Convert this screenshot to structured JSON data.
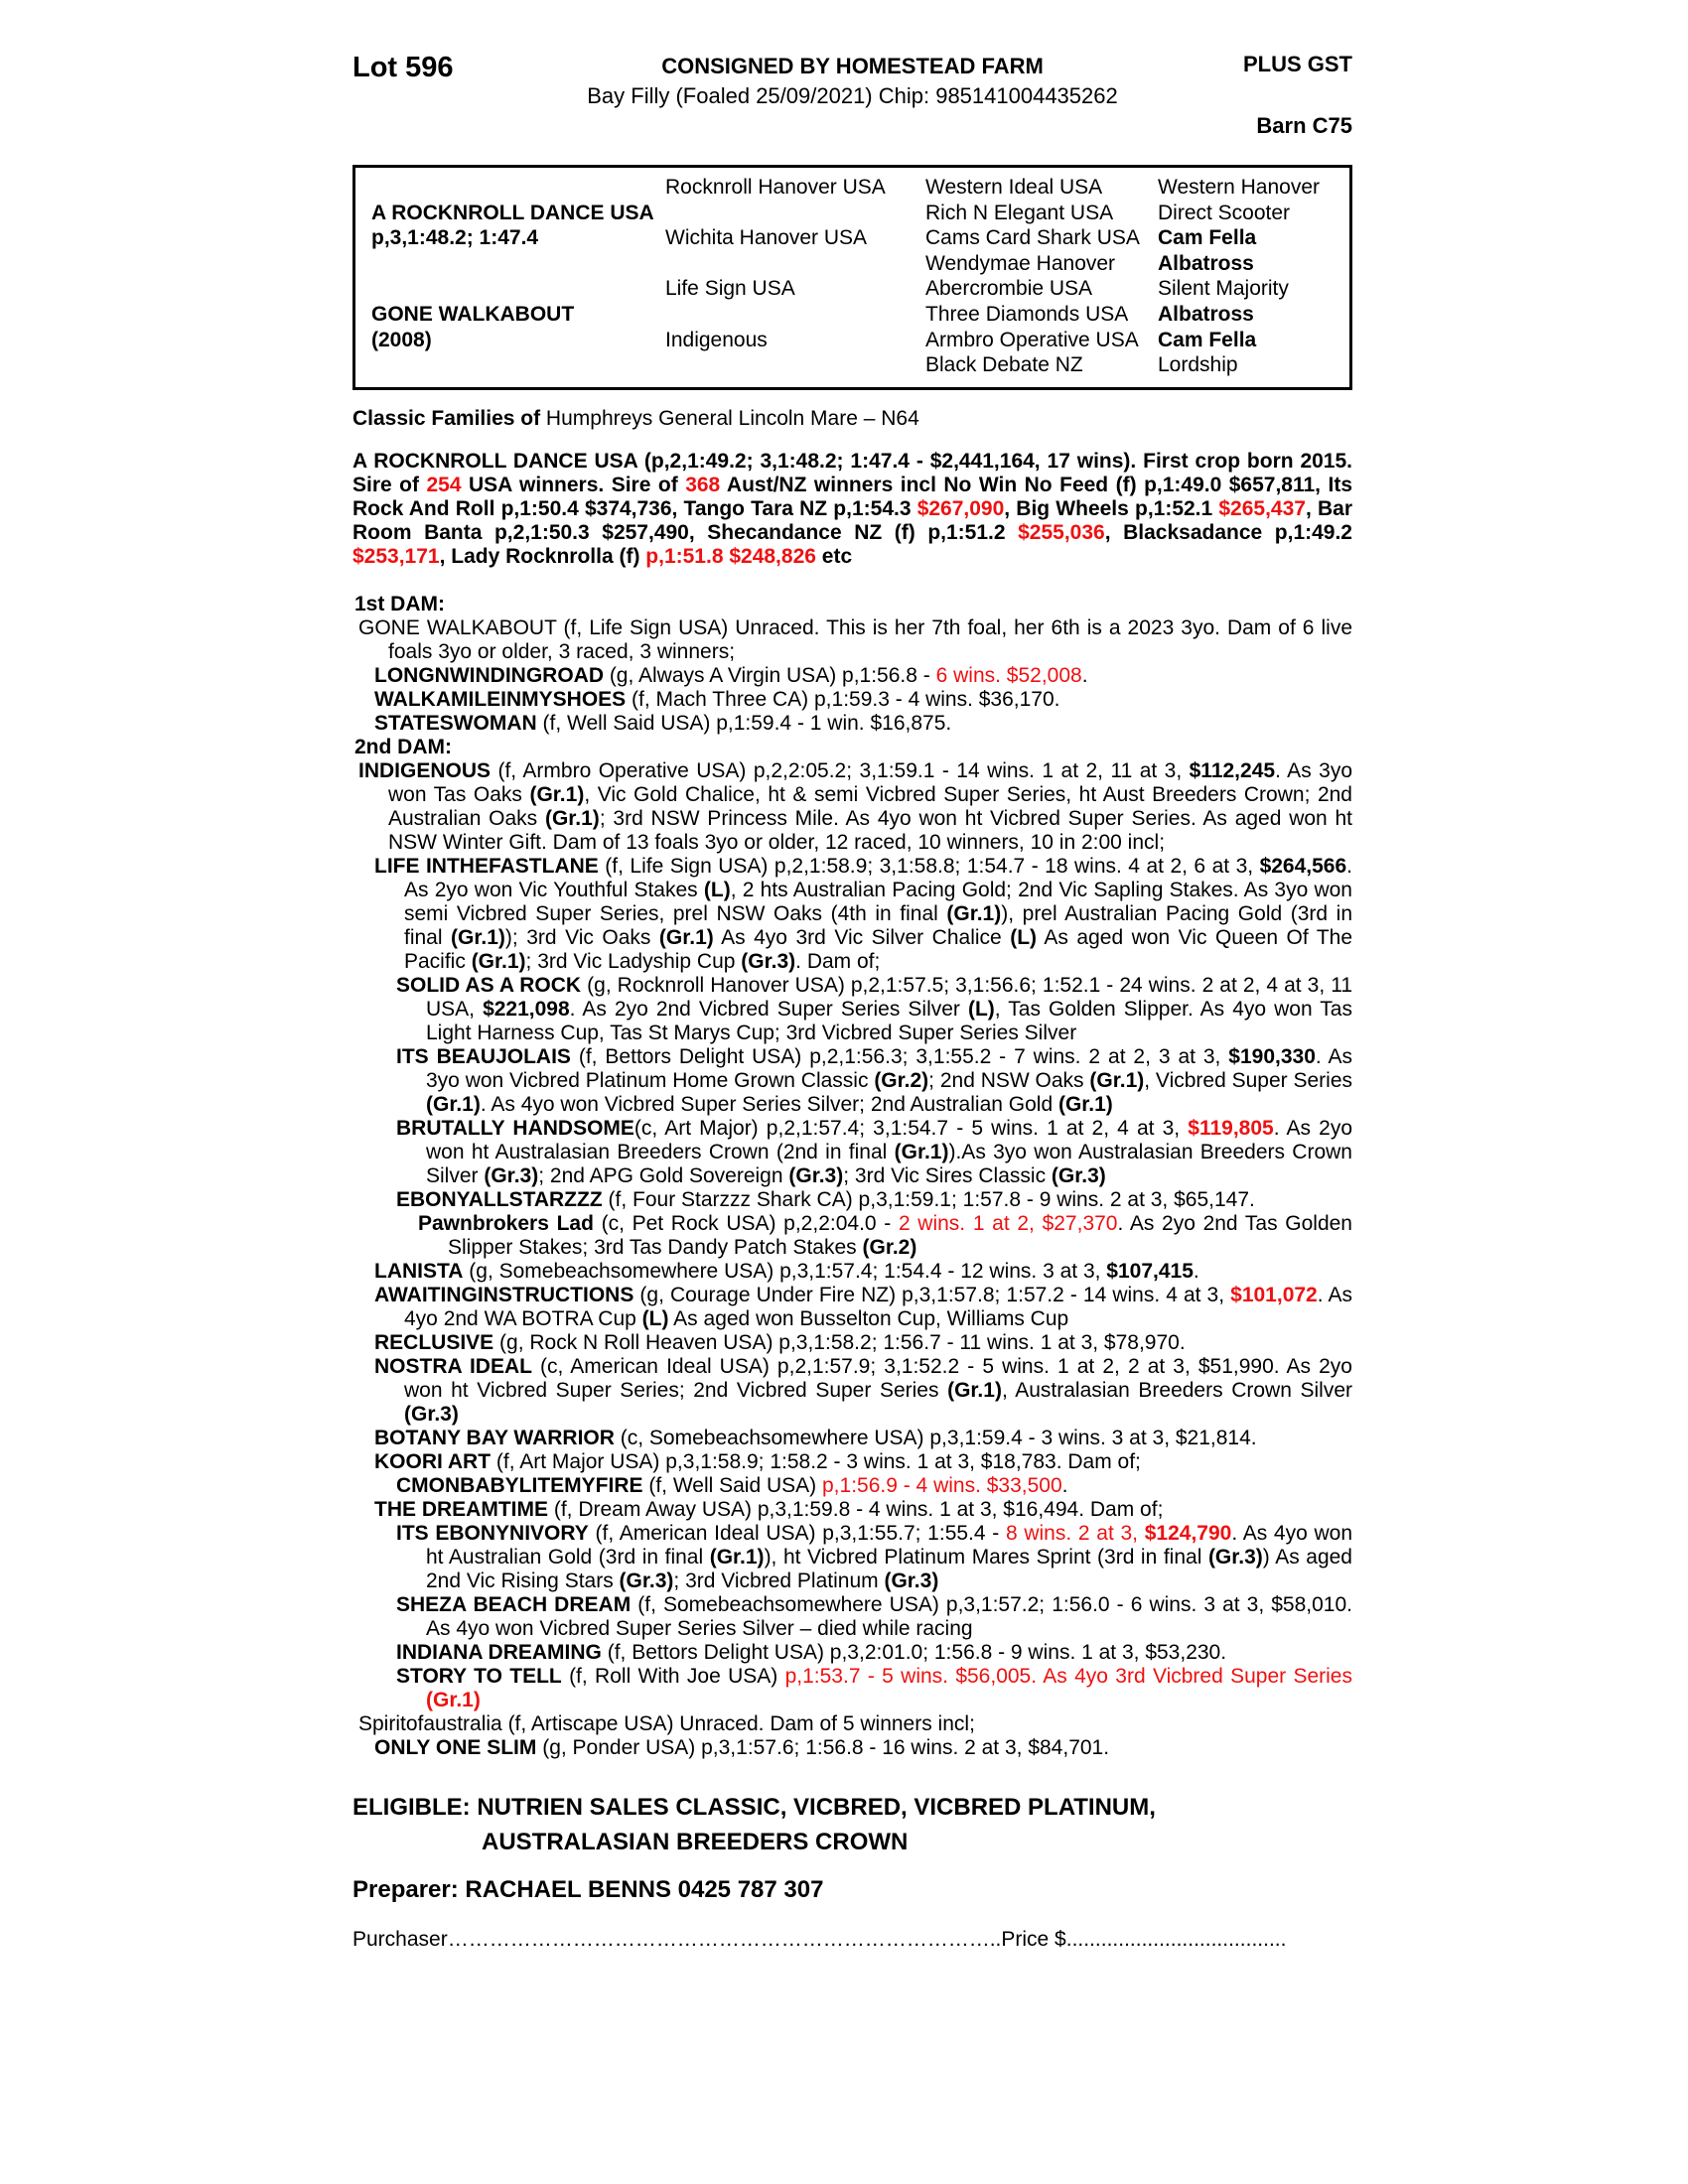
{
  "colors": {
    "red": "#ee1111",
    "text": "#000000",
    "page_bg": "#ffffff"
  },
  "header": {
    "lot": "Lot 596",
    "consigned": "CONSIGNED BY HOMESTEAD FARM",
    "plus_gst": "PLUS GST",
    "foal_line": "Bay Filly (Foaled 25/09/2021) Chip: 985141004435262",
    "barn": "Barn C75"
  },
  "pedigree": {
    "rows": [
      [
        "",
        "Rocknroll Hanover USA",
        "Western Ideal USA",
        "Western Hanover"
      ],
      [
        "**A ROCKNROLL DANCE USA**",
        "",
        "Rich N Elegant USA",
        "Direct Scooter"
      ],
      [
        "**p,3,1:48.2; 1:47.4**",
        "Wichita Hanover USA",
        "Cams Card Shark USA",
        "**Cam Fella**"
      ],
      [
        "",
        "",
        "Wendymae Hanover",
        "**Albatross**"
      ],
      [
        "",
        "Life Sign USA",
        "Abercrombie USA",
        "Silent Majority"
      ],
      [
        "**GONE WALKABOUT**",
        "",
        "Three Diamonds USA",
        "**Albatross**"
      ],
      [
        "**(2008)**",
        "Indigenous",
        "Armbro Operative USA",
        "**Cam Fella**"
      ],
      [
        "",
        "",
        "Black Debate NZ",
        "Lordship"
      ]
    ]
  },
  "classic_families": {
    "label": "Classic Families of",
    "value": " Humphreys General Lincoln Mare – N64"
  },
  "sire_paragraph": "A ROCKNROLL DANCE USA  (p,2,1:49.2; 3,1:48.2; 1:47.4 - $2,441,164, 17 wins). First crop born 2015. Sire of @@254@@ USA winners. Sire of @@368@@ Aust/NZ winners incl No Win No Feed (f) p,1:49.0 $657,811, Its Rock And Roll p,1:50.4 $374,736, Tango Tara NZ p,1:54.3 @@$267,090@@, Big Wheels p,1:52.1 @@$265,437@@, Bar Room Banta p,2,1:50.3 $257,490, Shecandance NZ (f) p,1:51.2 @@$255,036@@, Blacksadance p,1:49.2 @@$253,171@@, Lady Rocknrolla (f) @@p,1:51.8 $248,826@@ etc",
  "body": {
    "entries": [
      {
        "c": "h",
        "t": "**1st DAM:**"
      },
      {
        "c": "a",
        "t": "GONE WALKABOUT (f, Life Sign USA) Unraced. This is her 7th foal, her 6th is a 2023 3yo. Dam of 6 live foals 3yo or older, 3 raced, 3 winners;"
      },
      {
        "c": "b",
        "t": "**LONGNWINDINGROAD** (g, Always A Virgin USA) p,1:56.8 - @@6 wins. $52,008@@."
      },
      {
        "c": "b",
        "t": "**WALKAMILEINMYSHOES** (f, Mach Three CA) p,1:59.3 - 4 wins. $36,170."
      },
      {
        "c": "b",
        "t": "**STATESWOMAN** (f, Well Said USA) p,1:59.4 - 1 win. $16,875."
      },
      {
        "c": "h",
        "t": "**2nd DAM:**"
      },
      {
        "c": "a",
        "t": "**INDIGENOUS** (f, Armbro Operative USA) p,2,2:05.2; 3,1:59.1 - 14 wins. 1 at 2, 11 at 3, **$112,245**. As 3yo won Tas Oaks **(Gr.1)**, Vic Gold Chalice, ht & semi Vicbred Super Series, ht Aust Breeders Crown; 2nd Australian Oaks **(Gr.1)**; 3rd NSW Princess Mile. As 4yo won ht Vicbred Super Series. As aged won ht NSW Winter Gift. Dam of 13 foals 3yo or older, 12 raced, 10 winners, 10 in 2:00 incl;"
      },
      {
        "c": "b",
        "t": "**LIFE INTHEFASTLANE** (f, Life Sign USA) p,2,1:58.9; 3,1:58.8; 1:54.7 - 18 wins. 4 at 2, 6 at 3, **$264,566**. As 2yo won Vic Youthful Stakes **(L)**, 2 hts Australian Pacing Gold; 2nd Vic Sapling Stakes. As 3yo won semi Vicbred Super Series, prel NSW Oaks (4th in final **(Gr.1)**), prel Australian Pacing Gold (3rd in final **(Gr.1)**); 3rd Vic Oaks **(Gr.1)** As 4yo 3rd Vic Silver Chalice **(L)** As aged won Vic Queen Of The Pacific **(Gr.1)**; 3rd Vic Ladyship Cup **(Gr.3)**. Dam of;"
      },
      {
        "c": "c",
        "t": "**SOLID AS A ROCK** (g, Rocknroll Hanover USA) p,2,1:57.5; 3,1:56.6; 1:52.1 - 24 wins. 2 at 2, 4 at 3, 11 USA, **$221,098**. As 2yo 2nd Vicbred Super Series Silver **(L)**, Tas Golden Slipper. As 4yo won Tas Light Harness Cup, Tas St Marys Cup; 3rd Vicbred Super Series Silver"
      },
      {
        "c": "c",
        "t": "**ITS BEAUJOLAIS** (f, Bettors Delight USA) p,2,1:56.3; 3,1:55.2 - 7 wins. 2 at 2, 3 at 3, **$190,330**. As 3yo won Vicbred Platinum Home Grown Classic **(Gr.2)**; 2nd NSW Oaks **(Gr.1)**, Vicbred Super Series **(Gr.1)**. As 4yo won Vicbred Super Series Silver; 2nd Australian Gold **(Gr.1)**"
      },
      {
        "c": "c",
        "t": "**BRUTALLY HANDSOME**(c, Art Major) p,2,1:57.4; 3,1:54.7 - 5 wins. 1 at 2, 4 at 3, @@**$119,805**@@. As 2yo won ht Australasian Breeders Crown (2nd in final **(Gr.1)**).As 3yo won Australasian Breeders Crown Silver **(Gr.3)**; 2nd APG Gold Sovereign **(Gr.3)**; 3rd Vic Sires Classic **(Gr.3)**"
      },
      {
        "c": "c",
        "t": "**EBONYALLSTARZZZ** (f, Four Starzzz Shark CA) p,3,1:59.1; 1:57.8 - 9 wins. 2 at 3, $65,147."
      },
      {
        "c": "d",
        "t": "**Pawnbrokers Lad** (c, Pet Rock USA) p,2,2:04.0 - @@2 wins. 1 at 2, $27,370@@. As 2yo 2nd Tas Golden Slipper Stakes; 3rd Tas Dandy Patch Stakes **(Gr.2)**"
      },
      {
        "c": "b",
        "t": "**LANISTA** (g, Somebeachsomewhere USA) p,3,1:57.4; 1:54.4 - 12 wins. 3 at 3, **$107,415**."
      },
      {
        "c": "b",
        "t": "**AWAITINGINSTRUCTIONS** (g, Courage Under Fire NZ) p,3,1:57.8; 1:57.2 - 14 wins. 4 at 3, @@**$101,072**@@. As 4yo 2nd WA BOTRA Cup **(L)** As aged won Busselton Cup, Williams Cup"
      },
      {
        "c": "b",
        "t": "**RECLUSIVE** (g, Rock N Roll Heaven USA) p,3,1:58.2; 1:56.7 - 11 wins. 1 at 3, $78,970."
      },
      {
        "c": "b",
        "t": "**NOSTRA IDEAL** (c, American Ideal USA) p,2,1:57.9; 3,1:52.2 - 5 wins. 1 at 2, 2 at 3, $51,990. As 2yo won ht Vicbred Super Series; 2nd Vicbred Super Series **(Gr.1)**, Australasian Breeders Crown Silver **(Gr.3)**"
      },
      {
        "c": "b",
        "t": "**BOTANY BAY WARRIOR** (c, Somebeachsomewhere USA) p,3,1:59.4 - 3 wins. 3 at 3, $21,814."
      },
      {
        "c": "b",
        "t": "**KOORI ART** (f, Art Major USA) p,3,1:58.9; 1:58.2 - 3 wins. 1 at 3, $18,783. Dam of;"
      },
      {
        "c": "c",
        "t": "**CMONBABYLITEMYFIRE** (f, Well Said USA) @@p,1:56.9 - 4 wins. $33,500@@."
      },
      {
        "c": "b",
        "t": "**THE DREAMTIME** (f, Dream Away USA) p,3,1:59.8 - 4 wins. 1 at 3, $16,494. Dam of;"
      },
      {
        "c": "c",
        "t": "**ITS EBONYNIVORY** (f, American Ideal USA) p,3,1:55.7; 1:55.4 - @@8 wins. 2 at 3, **$124,790**@@. As 4yo won ht Australian Gold (3rd in final **(Gr.1)**), ht Vicbred Platinum Mares Sprint (3rd in final **(Gr.3)**) As aged 2nd Vic Rising Stars **(Gr.3)**; 3rd Vicbred Platinum **(Gr.3)**"
      },
      {
        "c": "c",
        "t": "**SHEZA BEACH DREAM** (f, Somebeachsomewhere USA) p,3,1:57.2; 1:56.0 - 6 wins. 3 at 3, $58,010. As 4yo won Vicbred Super Series Silver – died while racing"
      },
      {
        "c": "c",
        "t": "**INDIANA DREAMING** (f, Bettors Delight USA) p,3,2:01.0; 1:56.8 - 9 wins. 1 at 3, $53,230."
      },
      {
        "c": "c",
        "t": "**STORY TO TELL** (f, Roll With Joe USA) @@p,1:53.7 - 5 wins. $56,005. As 4yo 3rd Vicbred Super Series **(Gr.1)**@@"
      },
      {
        "c": "a",
        "t": "Spiritofaustralia (f, Artiscape USA) Unraced. Dam of 5 winners incl;"
      },
      {
        "c": "b",
        "t": "**ONLY ONE SLIM** (g, Ponder USA) p,3,1:57.6; 1:56.8 - 16 wins. 2 at 3, $84,701."
      }
    ]
  },
  "eligible": {
    "line1": "ELIGIBLE: NUTRIEN SALES CLASSIC, VICBRED, VICBRED PLATINUM,",
    "line2": "AUSTRALASIAN BREEDERS CROWN"
  },
  "preparer": "Preparer: RACHAEL BENNS 0425 787 307",
  "purchaser_line": "Purchaser……………………………………………………………………..Price $......................................"
}
